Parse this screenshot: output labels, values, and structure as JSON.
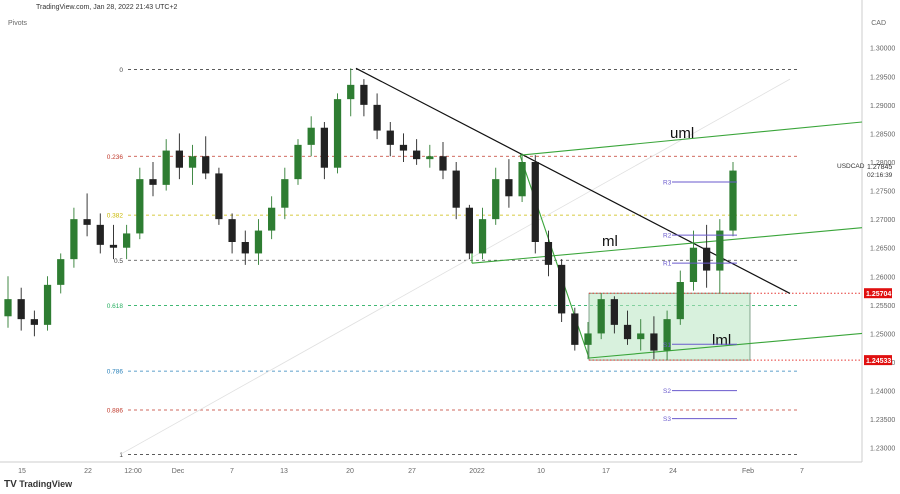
{
  "header": {
    "attribution": "TradingView.com, Jan 28, 2022 21:43 UTC+2",
    "indicator": "Pivots",
    "currency": "CAD",
    "footer_brand": "TradingView"
  },
  "colors": {
    "up": "#2e7d32",
    "down": "#222222",
    "fib_red": "#c0392b",
    "fib_green": "#27ae60",
    "fib_blue": "#2980b9",
    "fib_yellow": "#c9b800",
    "trend": "#111111",
    "pitchfork": "#3aa53a",
    "range_box": "#b8e6c1",
    "pivot": "#6a5acd",
    "price_label": "#e01010",
    "dotted_red": "#e53935"
  },
  "chart_data": {
    "type": "candlestick",
    "symbol": "USDCAD",
    "last_price": "1.27845",
    "countdown": "02:16:39",
    "ylim": [
      1.2275,
      1.3045
    ],
    "ytick_labels": [
      "1.30000",
      "1.29500",
      "1.29000",
      "1.28500",
      "1.28000",
      "1.27500",
      "1.27000",
      "1.26500",
      "1.26000",
      "1.25500",
      "1.25000",
      "1.24500",
      "1.24000",
      "1.23500",
      "1.23000"
    ],
    "xtick_labels": [
      "15",
      "22",
      "12:00",
      "Dec",
      "7",
      "13",
      "20",
      "27",
      "2022",
      "10",
      "17",
      "24",
      "Feb",
      "7"
    ],
    "fib_levels": [
      {
        "label": "0",
        "price": 1.2962,
        "color": "#444444"
      },
      {
        "label": "0.236",
        "price": 1.281,
        "color": "#c0392b"
      },
      {
        "label": "0.382",
        "price": 1.2707,
        "color": "#c9b800"
      },
      {
        "label": "0.5",
        "price": 1.2628,
        "color": "#444444"
      },
      {
        "label": "0.618",
        "price": 1.2549,
        "color": "#27ae60"
      },
      {
        "label": "0.786",
        "price": 1.2434,
        "color": "#2980b9"
      },
      {
        "label": "0.886",
        "price": 1.2366,
        "color": "#c0392b"
      },
      {
        "label": "1",
        "price": 1.2288,
        "color": "#444444"
      }
    ],
    "price_labels": [
      {
        "text": "1.25704",
        "price": 1.25704
      },
      {
        "text": "1.24533",
        "price": 1.24533
      }
    ],
    "pivots": [
      {
        "label": "R3",
        "price": 1.2765
      },
      {
        "label": "R2",
        "price": 1.2672
      },
      {
        "label": "R1",
        "price": 1.2623
      },
      {
        "label": "S1",
        "price": 1.2481
      },
      {
        "label": "S2",
        "price": 1.24
      },
      {
        "label": "S3",
        "price": 1.2351
      }
    ],
    "annotations": [
      "uml",
      "ml",
      "lml"
    ],
    "candles": [
      {
        "d": "Nov 12",
        "o": 1.253,
        "h": 1.26,
        "l": 1.251,
        "c": 1.256
      },
      {
        "d": "Nov 15",
        "o": 1.256,
        "h": 1.258,
        "l": 1.2505,
        "c": 1.2525
      },
      {
        "d": "Nov 16",
        "o": 1.2525,
        "h": 1.254,
        "l": 1.2495,
        "c": 1.2515
      },
      {
        "d": "Nov 17",
        "o": 1.2515,
        "h": 1.26,
        "l": 1.2505,
        "c": 1.2585
      },
      {
        "d": "Nov 18",
        "o": 1.2585,
        "h": 1.264,
        "l": 1.257,
        "c": 1.263
      },
      {
        "d": "Nov 19",
        "o": 1.263,
        "h": 1.272,
        "l": 1.2615,
        "c": 1.27
      },
      {
        "d": "Nov 22",
        "o": 1.27,
        "h": 1.2745,
        "l": 1.267,
        "c": 1.269
      },
      {
        "d": "Nov 23",
        "o": 1.269,
        "h": 1.271,
        "l": 1.264,
        "c": 1.2655
      },
      {
        "d": "Nov 24",
        "o": 1.2655,
        "h": 1.269,
        "l": 1.263,
        "c": 1.265
      },
      {
        "d": "Nov 25",
        "o": 1.265,
        "h": 1.269,
        "l": 1.263,
        "c": 1.2675
      },
      {
        "d": "Nov 26",
        "o": 1.2675,
        "h": 1.279,
        "l": 1.2665,
        "c": 1.277
      },
      {
        "d": "Nov 29",
        "o": 1.277,
        "h": 1.28,
        "l": 1.274,
        "c": 1.276
      },
      {
        "d": "Nov 30",
        "o": 1.276,
        "h": 1.284,
        "l": 1.275,
        "c": 1.282
      },
      {
        "d": "Dec 1",
        "o": 1.282,
        "h": 1.285,
        "l": 1.277,
        "c": 1.279
      },
      {
        "d": "Dec 2",
        "o": 1.279,
        "h": 1.283,
        "l": 1.276,
        "c": 1.281
      },
      {
        "d": "Dec 3",
        "o": 1.281,
        "h": 1.2845,
        "l": 1.277,
        "c": 1.278
      },
      {
        "d": "Dec 6",
        "o": 1.278,
        "h": 1.279,
        "l": 1.269,
        "c": 1.27
      },
      {
        "d": "Dec 7",
        "o": 1.27,
        "h": 1.271,
        "l": 1.264,
        "c": 1.266
      },
      {
        "d": "Dec 8",
        "o": 1.266,
        "h": 1.268,
        "l": 1.262,
        "c": 1.264
      },
      {
        "d": "Dec 9",
        "o": 1.264,
        "h": 1.27,
        "l": 1.262,
        "c": 1.268
      },
      {
        "d": "Dec 10",
        "o": 1.268,
        "h": 1.274,
        "l": 1.2665,
        "c": 1.272
      },
      {
        "d": "Dec 13",
        "o": 1.272,
        "h": 1.279,
        "l": 1.27,
        "c": 1.277
      },
      {
        "d": "Dec 14",
        "o": 1.277,
        "h": 1.284,
        "l": 1.276,
        "c": 1.283
      },
      {
        "d": "Dec 15",
        "o": 1.283,
        "h": 1.288,
        "l": 1.281,
        "c": 1.286
      },
      {
        "d": "Dec 16",
        "o": 1.286,
        "h": 1.287,
        "l": 1.277,
        "c": 1.279
      },
      {
        "d": "Dec 17",
        "o": 1.279,
        "h": 1.292,
        "l": 1.278,
        "c": 1.291
      },
      {
        "d": "Dec 20",
        "o": 1.291,
        "h": 1.2964,
        "l": 1.288,
        "c": 1.2935
      },
      {
        "d": "Dec 21",
        "o": 1.2935,
        "h": 1.2945,
        "l": 1.288,
        "c": 1.29
      },
      {
        "d": "Dec 22",
        "o": 1.29,
        "h": 1.292,
        "l": 1.284,
        "c": 1.2855
      },
      {
        "d": "Dec 23",
        "o": 1.2855,
        "h": 1.287,
        "l": 1.281,
        "c": 1.283
      },
      {
        "d": "Dec 24",
        "o": 1.283,
        "h": 1.285,
        "l": 1.28,
        "c": 1.282
      },
      {
        "d": "Dec 27",
        "o": 1.282,
        "h": 1.284,
        "l": 1.2795,
        "c": 1.2805
      },
      {
        "d": "Dec 28",
        "o": 1.2805,
        "h": 1.283,
        "l": 1.279,
        "c": 1.281
      },
      {
        "d": "Dec 29",
        "o": 1.281,
        "h": 1.2835,
        "l": 1.277,
        "c": 1.2785
      },
      {
        "d": "Dec 30",
        "o": 1.2785,
        "h": 1.28,
        "l": 1.27,
        "c": 1.272
      },
      {
        "d": "Dec 31",
        "o": 1.272,
        "h": 1.2725,
        "l": 1.263,
        "c": 1.264
      },
      {
        "d": "Jan 3",
        "o": 1.264,
        "h": 1.272,
        "l": 1.263,
        "c": 1.27
      },
      {
        "d": "Jan 4",
        "o": 1.27,
        "h": 1.279,
        "l": 1.269,
        "c": 1.277
      },
      {
        "d": "Jan 5",
        "o": 1.277,
        "h": 1.2805,
        "l": 1.272,
        "c": 1.274
      },
      {
        "d": "Jan 6",
        "o": 1.274,
        "h": 1.2815,
        "l": 1.273,
        "c": 1.28
      },
      {
        "d": "Jan 7",
        "o": 1.28,
        "h": 1.2812,
        "l": 1.264,
        "c": 1.266
      },
      {
        "d": "Jan 10",
        "o": 1.266,
        "h": 1.268,
        "l": 1.26,
        "c": 1.262
      },
      {
        "d": "Jan 11",
        "o": 1.262,
        "h": 1.263,
        "l": 1.252,
        "c": 1.2535
      },
      {
        "d": "Jan 12",
        "o": 1.2535,
        "h": 1.2545,
        "l": 1.247,
        "c": 1.248
      },
      {
        "d": "Jan 13",
        "o": 1.248,
        "h": 1.252,
        "l": 1.2455,
        "c": 1.25
      },
      {
        "d": "Jan 14",
        "o": 1.25,
        "h": 1.257,
        "l": 1.249,
        "c": 1.256
      },
      {
        "d": "Jan 17",
        "o": 1.256,
        "h": 1.2565,
        "l": 1.25,
        "c": 1.2515
      },
      {
        "d": "Jan 18",
        "o": 1.2515,
        "h": 1.254,
        "l": 1.248,
        "c": 1.249
      },
      {
        "d": "Jan 19",
        "o": 1.249,
        "h": 1.2525,
        "l": 1.247,
        "c": 1.25
      },
      {
        "d": "Jan 20",
        "o": 1.25,
        "h": 1.253,
        "l": 1.2455,
        "c": 1.247
      },
      {
        "d": "Jan 21",
        "o": 1.247,
        "h": 1.254,
        "l": 1.2453,
        "c": 1.2525
      },
      {
        "d": "Jan 24",
        "o": 1.2525,
        "h": 1.261,
        "l": 1.2515,
        "c": 1.259
      },
      {
        "d": "Jan 25",
        "o": 1.259,
        "h": 1.268,
        "l": 1.2575,
        "c": 1.265
      },
      {
        "d": "Jan 26",
        "o": 1.265,
        "h": 1.269,
        "l": 1.258,
        "c": 1.261
      },
      {
        "d": "Jan 27",
        "o": 1.261,
        "h": 1.27,
        "l": 1.257,
        "c": 1.268
      },
      {
        "d": "Jan 28",
        "o": 1.268,
        "h": 1.28,
        "l": 1.267,
        "c": 1.2785
      }
    ]
  }
}
